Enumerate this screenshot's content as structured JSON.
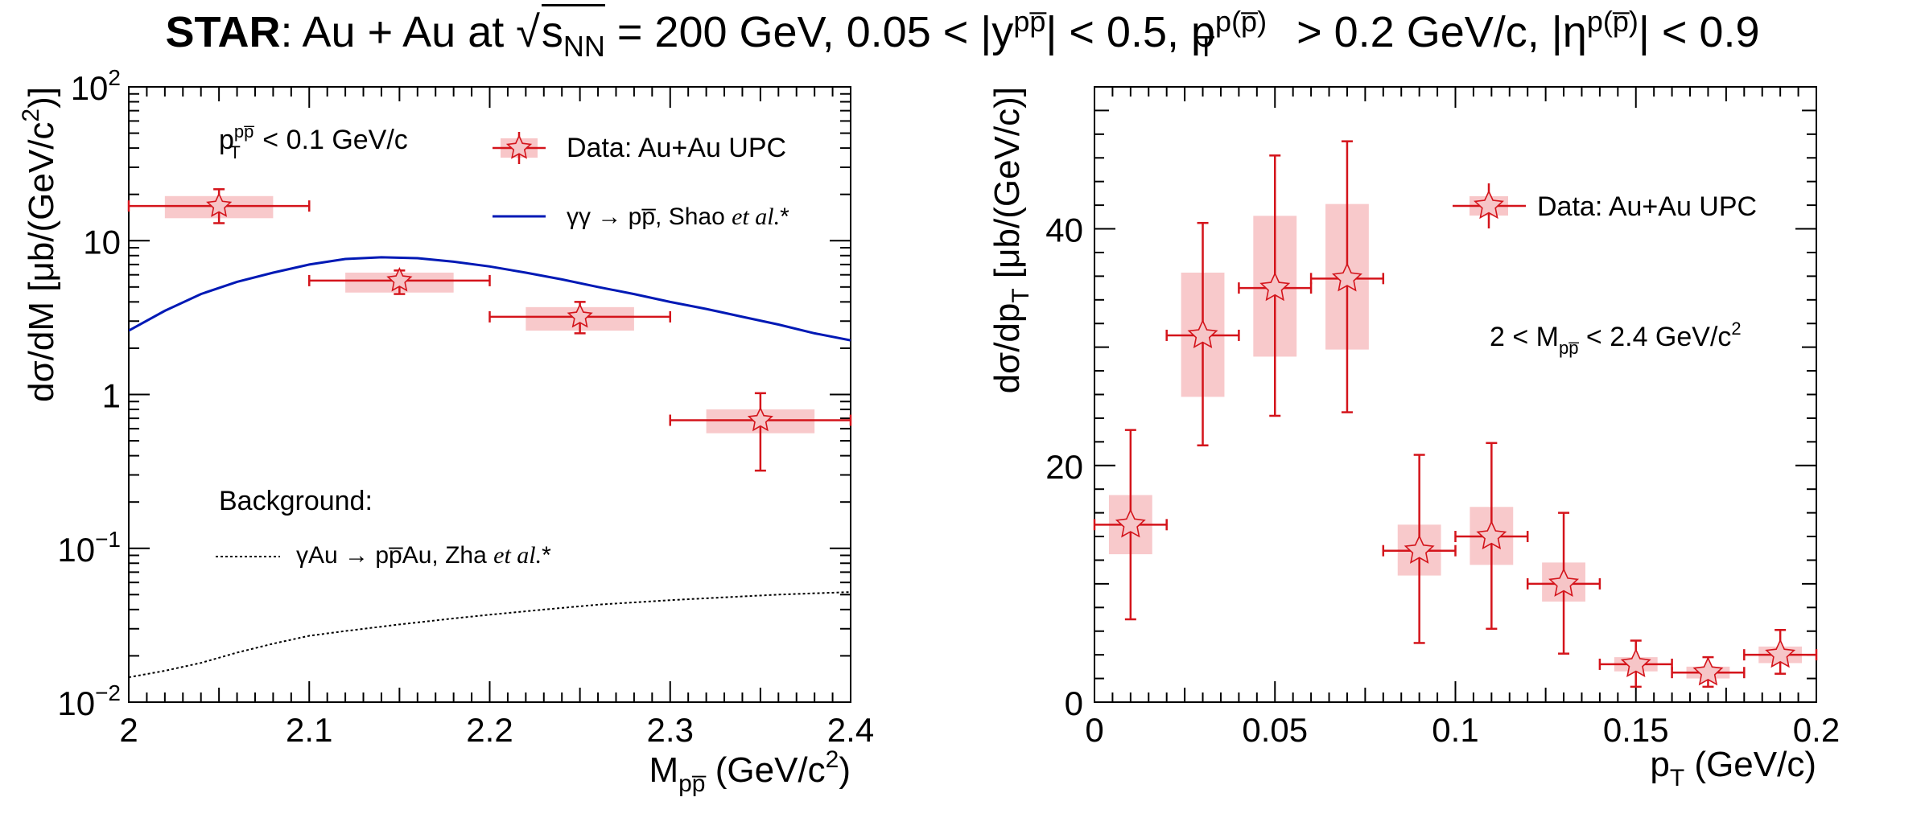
{
  "title": {
    "bold": "STAR",
    "rest_before_sqrt": ": Au + Au at ",
    "sqrt_symbol": "√",
    "s": "s",
    "s_sub": "NN",
    "rest_after_sqrt": " = 200 GeV, 0.05 < |y",
    "y_sup": "pp̅",
    "rest2": "| < 0.5, p",
    "pt_sub": "T",
    "pt_sup": "p(p̅)",
    "rest3": " > 0.2 GeV/c, |η",
    "eta_sup": "p(p̅)",
    "rest4": "| < 0.9"
  },
  "chart_data": [
    {
      "type": "scatter",
      "panel": "left",
      "xlabel": "M",
      "xlabel_sub": "pp̅",
      "xlabel_unit": " (GeV/c",
      "xlabel_unit_sup": "2",
      "xlabel_unit_end": ")",
      "ylabel": "dσ/dM [μb/(GeV/c",
      "ylabel_sup": "2",
      "ylabel_end": ")]",
      "xlim": [
        2.0,
        2.4
      ],
      "ylim": [
        0.01,
        100
      ],
      "yscale": "log",
      "x_ticks": [
        "2",
        "2.1",
        "2.2",
        "2.3",
        "2.4"
      ],
      "y_ticks": [
        {
          "v": 0.01,
          "base": "10",
          "exp": "−2"
        },
        {
          "v": 0.1,
          "base": "10",
          "exp": "−1"
        },
        {
          "v": 1,
          "base": "1",
          "exp": ""
        },
        {
          "v": 10,
          "base": "10",
          "exp": ""
        },
        {
          "v": 100,
          "base": "10",
          "exp": "2"
        }
      ],
      "cut_label": {
        "p": "p",
        "sup": "pp̅",
        "sub": "T",
        "rest": " < 0.1 GeV/c"
      },
      "legend": [
        {
          "label": "Data: Au+Au UPC",
          "kind": "marker"
        },
        {
          "label_a": "γγ → pp̅, Shao ",
          "label_b": "et al.",
          "label_c": "*",
          "kind": "line",
          "color": "#0019b5"
        }
      ],
      "background_title": "Background:",
      "background_legend": {
        "label_a": "γAu → pp̅Au, Zha ",
        "label_b": "et al.",
        "label_c": "*"
      },
      "series": [
        {
          "name": "Data: Au+Au UPC",
          "color": "#d4141b",
          "points": [
            {
              "x": 2.05,
              "y": 16.8,
              "xerr": 0.05,
              "yerr_lo": 3.8,
              "yerr_hi": 4.8,
              "syst_lo": 14.0,
              "syst_hi": 19.5
            },
            {
              "x": 2.15,
              "y": 5.5,
              "xerr": 0.05,
              "yerr_lo": 1.0,
              "yerr_hi": 0.9,
              "syst_lo": 4.6,
              "syst_hi": 6.2
            },
            {
              "x": 2.25,
              "y": 3.2,
              "xerr": 0.05,
              "yerr_lo": 0.7,
              "yerr_hi": 0.8,
              "syst_lo": 2.6,
              "syst_hi": 3.7
            },
            {
              "x": 2.35,
              "y": 0.68,
              "xerr": 0.05,
              "yerr_lo": 0.36,
              "yerr_hi": 0.34,
              "syst_lo": 0.56,
              "syst_hi": 0.8
            }
          ]
        },
        {
          "name": "γγ → pp̅, Shao et al.*",
          "color": "#0019b5",
          "curve": [
            [
              2.0,
              2.6
            ],
            [
              2.02,
              3.5
            ],
            [
              2.04,
              4.5
            ],
            [
              2.06,
              5.4
            ],
            [
              2.08,
              6.2
            ],
            [
              2.1,
              7.0
            ],
            [
              2.12,
              7.6
            ],
            [
              2.14,
              7.8
            ],
            [
              2.16,
              7.7
            ],
            [
              2.18,
              7.3
            ],
            [
              2.2,
              6.8
            ],
            [
              2.22,
              6.2
            ],
            [
              2.24,
              5.6
            ],
            [
              2.26,
              5.0
            ],
            [
              2.28,
              4.5
            ],
            [
              2.3,
              4.0
            ],
            [
              2.32,
              3.6
            ],
            [
              2.34,
              3.2
            ],
            [
              2.36,
              2.85
            ],
            [
              2.38,
              2.5
            ],
            [
              2.4,
              2.25
            ]
          ]
        },
        {
          "name": "γAu → pp̅Au, Zha et al.*",
          "color": "#000000",
          "dotted": true,
          "curve": [
            [
              2.0,
              0.0145
            ],
            [
              2.02,
              0.016
            ],
            [
              2.04,
              0.018
            ],
            [
              2.06,
              0.021
            ],
            [
              2.08,
              0.024
            ],
            [
              2.1,
              0.027
            ],
            [
              2.12,
              0.029
            ],
            [
              2.15,
              0.032
            ],
            [
              2.18,
              0.035
            ],
            [
              2.2,
              0.037
            ],
            [
              2.23,
              0.04
            ],
            [
              2.26,
              0.043
            ],
            [
              2.3,
              0.046
            ],
            [
              2.33,
              0.048
            ],
            [
              2.36,
              0.05
            ],
            [
              2.4,
              0.052
            ]
          ]
        }
      ]
    },
    {
      "type": "scatter",
      "panel": "right",
      "xlabel": "p",
      "xlabel_sub": "T",
      "xlabel_unit": " (GeV/c)",
      "ylabel": "dσ/dp",
      "ylabel_sub": "T",
      "ylabel_end": " [μb/(GeV/c)]",
      "xlim": [
        0,
        0.2
      ],
      "ylim": [
        0,
        52
      ],
      "x_ticks": [
        "0",
        "0.05",
        "0.1",
        "0.15",
        "0.2"
      ],
      "y_ticks": [
        "0",
        "20",
        "40"
      ],
      "legend": [
        {
          "label": "Data: Au+Au UPC",
          "kind": "marker"
        }
      ],
      "cut_label": {
        "a": "2 < M",
        "sub": "pp̅",
        "b": " < 2.4 GeV/c",
        "sup": "2"
      },
      "series": [
        {
          "name": "Data: Au+Au UPC",
          "color": "#d4141b",
          "points": [
            {
              "x": 0.01,
              "y": 15.0,
              "xerr": 0.01,
              "yerr_lo": 8.0,
              "yerr_hi": 8.0,
              "syst_lo": 12.5,
              "syst_hi": 17.5
            },
            {
              "x": 0.03,
              "y": 31.0,
              "xerr": 0.01,
              "yerr_lo": 9.3,
              "yerr_hi": 9.5,
              "syst_lo": 25.8,
              "syst_hi": 36.3
            },
            {
              "x": 0.05,
              "y": 35.0,
              "xerr": 0.01,
              "yerr_lo": 10.8,
              "yerr_hi": 11.2,
              "syst_lo": 29.2,
              "syst_hi": 41.1
            },
            {
              "x": 0.07,
              "y": 35.8,
              "xerr": 0.01,
              "yerr_lo": 11.3,
              "yerr_hi": 11.6,
              "syst_lo": 29.8,
              "syst_hi": 42.1
            },
            {
              "x": 0.09,
              "y": 12.8,
              "xerr": 0.01,
              "yerr_lo": 7.8,
              "yerr_hi": 8.1,
              "syst_lo": 10.7,
              "syst_hi": 15.0
            },
            {
              "x": 0.11,
              "y": 14.0,
              "xerr": 0.01,
              "yerr_lo": 7.8,
              "yerr_hi": 7.9,
              "syst_lo": 11.6,
              "syst_hi": 16.5
            },
            {
              "x": 0.13,
              "y": 10.0,
              "xerr": 0.01,
              "yerr_lo": 5.9,
              "yerr_hi": 6.0,
              "syst_lo": 8.5,
              "syst_hi": 11.8
            },
            {
              "x": 0.15,
              "y": 3.2,
              "xerr": 0.01,
              "yerr_lo": 1.9,
              "yerr_hi": 2.0,
              "syst_lo": 2.6,
              "syst_hi": 3.8
            },
            {
              "x": 0.17,
              "y": 2.5,
              "xerr": 0.01,
              "yerr_lo": 1.2,
              "yerr_hi": 1.3,
              "syst_lo": 2.0,
              "syst_hi": 3.0
            },
            {
              "x": 0.19,
              "y": 4.0,
              "xerr": 0.01,
              "yerr_lo": 1.6,
              "yerr_hi": 2.1,
              "syst_lo": 3.3,
              "syst_hi": 4.7
            }
          ]
        }
      ]
    }
  ]
}
